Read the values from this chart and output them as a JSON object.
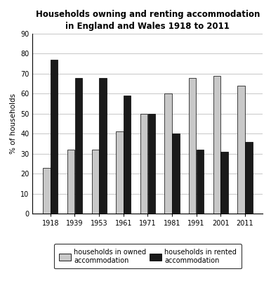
{
  "title": "Households owning and renting accommodation\nin England and Wales 1918 to 2011",
  "ylabel": "% of households",
  "years": [
    "1918",
    "1939",
    "1953",
    "1961",
    "1971",
    "1981",
    "1991",
    "2001",
    "2011"
  ],
  "owned": [
    23,
    32,
    32,
    41,
    50,
    60,
    68,
    69,
    64
  ],
  "rented": [
    77,
    68,
    68,
    59,
    50,
    40,
    32,
    31,
    36
  ],
  "owned_color": "#c8c8c8",
  "rented_color": "#1a1a1a",
  "ylim": [
    0,
    90
  ],
  "yticks": [
    0,
    10,
    20,
    30,
    40,
    50,
    60,
    70,
    80,
    90
  ],
  "owned_label": "households in owned\naccommodation",
  "rented_label": "households in rented\naccommodation",
  "title_fontsize": 8.5,
  "legend_fontsize": 7,
  "axis_fontsize": 7.5,
  "tick_fontsize": 7
}
